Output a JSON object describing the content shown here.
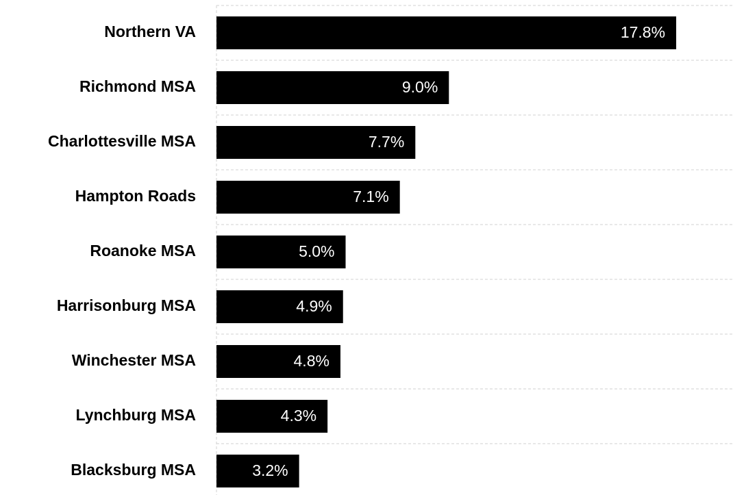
{
  "chart_data": {
    "type": "barh",
    "categories": [
      "Northern VA",
      "Richmond MSA",
      "Charlottesville MSA",
      "Hampton Roads",
      "Roanoke MSA",
      "Harrisonburg MSA",
      "Winchester MSA",
      "Lynchburg MSA",
      "Blacksburg MSA"
    ],
    "values": [
      17.8,
      9.0,
      7.7,
      7.1,
      5.0,
      4.9,
      4.8,
      4.3,
      3.2
    ],
    "value_labels": [
      "17.8%",
      "9.0%",
      "7.7%",
      "7.1%",
      "5.0%",
      "4.9%",
      "4.8%",
      "4.3%",
      "3.2%"
    ],
    "color": "#000000",
    "xlim": [
      0,
      20
    ]
  }
}
